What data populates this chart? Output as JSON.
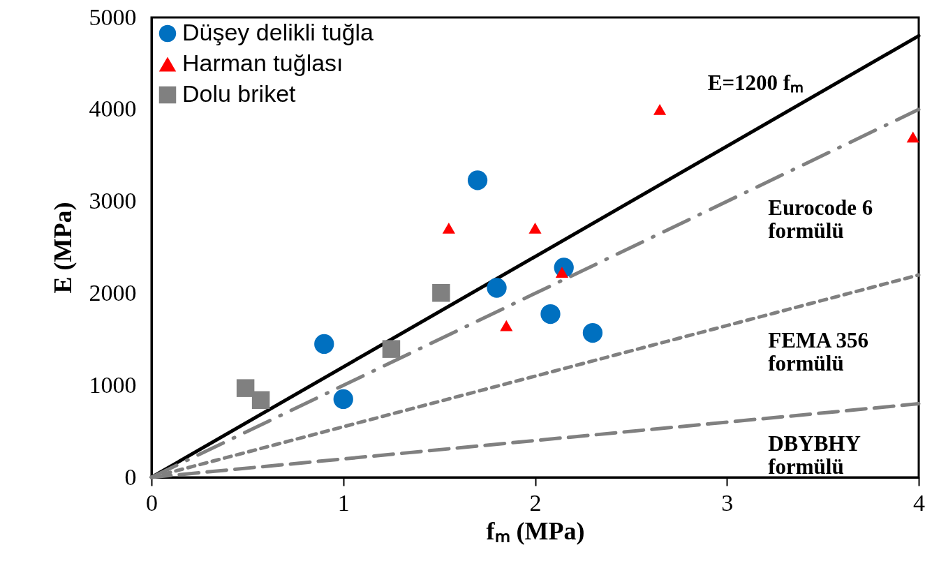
{
  "chart_data": {
    "type": "scatter",
    "xlabel": "fₘ (MPa)",
    "ylabel": "E (MPa)",
    "xlim": [
      0,
      4
    ],
    "ylim": [
      0,
      5000
    ],
    "xticks": [
      0,
      1,
      2,
      3,
      4
    ],
    "yticks": [
      0,
      1000,
      2000,
      3000,
      4000,
      5000
    ],
    "grid": false,
    "legend": "top left",
    "series": [
      {
        "name": "Düşey delikli tuğla",
        "color": "#0070c0",
        "marker": "circle",
        "x": [
          0.9,
          1.0,
          1.7,
          1.8,
          2.15,
          2.08,
          2.3
        ],
        "values": [
          1450,
          850,
          3230,
          2060,
          2280,
          1775,
          1570
        ]
      },
      {
        "name": "Harman tuğlası",
        "color": "#ff0000",
        "marker": "triangle",
        "x": [
          1.55,
          2.0,
          2.65,
          3.97,
          1.85,
          2.14
        ],
        "values": [
          2710,
          2710,
          4000,
          3700,
          1650,
          2230
        ]
      },
      {
        "name": "Dolu briket",
        "color": "#808080",
        "marker": "square",
        "x": [
          0.49,
          0.57,
          1.25,
          1.51
        ],
        "values": [
          970,
          840,
          1395,
          2005
        ]
      },
      {
        "type": "line",
        "name": "E=1200 fₘ",
        "color": "#000000",
        "line_style": "solid",
        "x": [
          0,
          4
        ],
        "values": [
          0,
          4800
        ]
      },
      {
        "type": "line",
        "name": "Eurocode 6 formülü",
        "color": "#808080",
        "line_style": "dashdot",
        "x": [
          0,
          4
        ],
        "values": [
          0,
          4000
        ]
      },
      {
        "type": "line",
        "name": "FEMA 356 formülü",
        "color": "#808080",
        "line_style": "dotted",
        "x": [
          0,
          4
        ],
        "values": [
          0,
          2200
        ]
      },
      {
        "type": "line",
        "name": "DBYBHY formülü",
        "color": "#808080",
        "line_style": "dashed",
        "x": [
          0,
          4
        ],
        "values": [
          0,
          800
        ]
      }
    ]
  }
}
